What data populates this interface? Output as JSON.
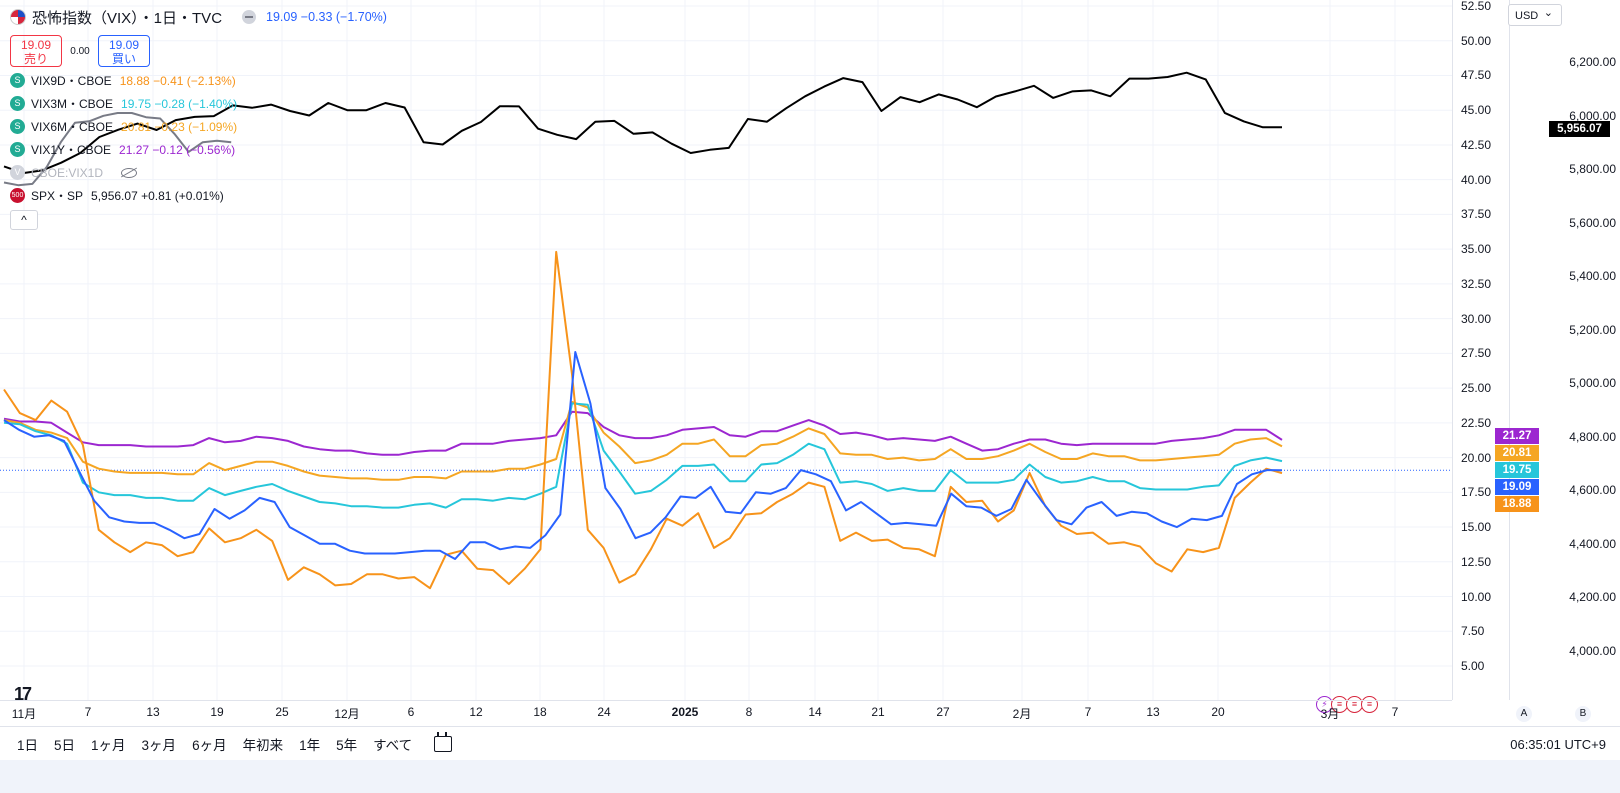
{
  "header": {
    "title": "恐怖指数（VIX）・1日・TVC",
    "price_info": "19.09 −0.33 (−1.70%)",
    "sell_price": "19.09",
    "sell_label": "売り",
    "spread": "0.00",
    "buy_price": "19.09",
    "buy_label": "買い"
  },
  "series": [
    {
      "name": "VIX9D・CBOE",
      "values": "18.88 −0.41 (−2.13%)",
      "color": "#f7931a",
      "icon": "S"
    },
    {
      "name": "VIX3M・CBOE",
      "values": "19.75 −0.28 (−1.40%)",
      "color": "#26c6da",
      "icon": "S"
    },
    {
      "name": "VIX6M・CBOE",
      "values": "20.81 −0.23 (−1.09%)",
      "color": "#f5a623",
      "icon": "S"
    },
    {
      "name": "VIX1Y・CBOE",
      "values": "21.27 −0.12 (−0.56%)",
      "color": "#9c27d0",
      "icon": "S"
    },
    {
      "name": "CBOE:VIX1D",
      "values": "",
      "color": "#b2b5be",
      "icon": "V"
    },
    {
      "name": "SPX・SP",
      "values": "5,956.07 +0.81 (+0.01%)",
      "color": "#131722",
      "icon": "500"
    }
  ],
  "axis": {
    "currency": "USD",
    "a_label": "A",
    "b_label": "B"
  },
  "badges": {
    "spx": "5,956.07",
    "vix1y": "21.27",
    "vix6m": "20.81",
    "vix3m": "19.75",
    "vix": "19.09",
    "vix9d": "18.88"
  },
  "ranges": [
    "1日",
    "5日",
    "1ヶ月",
    "3ヶ月",
    "6ヶ月",
    "年初来",
    "1年",
    "5年",
    "すべて"
  ],
  "clock": "06:35:01 UTC+9",
  "colors": {
    "vix": "#2962ff",
    "vix9d": "#f7931a",
    "vix3m": "#26c6da",
    "vix6m": "#f5a623",
    "vix1y": "#9c27d0",
    "spx": "#000000",
    "vix1d": "#787b86"
  },
  "chart_data": {
    "type": "line",
    "x_labels": [
      "11月",
      "7",
      "13",
      "19",
      "25",
      "12月",
      "6",
      "12",
      "18",
      "24",
      "2025",
      "8",
      "14",
      "21",
      "27",
      "2月",
      "7",
      "13",
      "20",
      "3月",
      "7"
    ],
    "y_left_ticks": [
      "52.50",
      "50.00",
      "47.50",
      "45.00",
      "42.50",
      "40.00",
      "37.50",
      "35.00",
      "32.50",
      "30.00",
      "27.50",
      "25.00",
      "22.50",
      "20.00",
      "17.50",
      "15.00",
      "12.50",
      "10.00",
      "7.50",
      "5.00"
    ],
    "y_right_ticks": [
      "6,200.00",
      "6,000.00",
      "5,800.00",
      "5,600.00",
      "5,400.00",
      "5,200.00",
      "5,000.00",
      "4,800.00",
      "4,600.00",
      "4,400.00",
      "4,200.00",
      "4,000.00"
    ],
    "ylim_left": [
      3.5,
      52.5
    ],
    "ylim_right": [
      3950,
      6230
    ],
    "series": [
      {
        "name": "VIX",
        "axis": "left",
        "values": [
          22.7,
          22.0,
          21.5,
          21.6,
          21.2,
          19.0,
          16.9,
          15.7,
          15.4,
          15.3,
          15.3,
          14.8,
          14.2,
          14.5,
          16.3,
          15.6,
          16.2,
          17.1,
          16.8,
          15.0,
          14.4,
          13.8,
          13.8,
          13.3,
          13.1,
          13.1,
          13.1,
          13.2,
          13.3,
          13.3,
          12.7,
          13.9,
          13.9,
          13.4,
          13.6,
          13.5,
          14.4,
          15.9,
          27.6,
          23.9,
          17.8,
          16.3,
          14.2,
          14.6,
          15.7,
          17.2,
          17.1,
          17.9,
          16.1,
          16.0,
          17.5,
          17.4,
          17.8,
          19.1,
          18.8,
          18.3,
          16.2,
          16.8,
          16.0,
          15.2,
          15.3,
          15.2,
          15.1,
          17.4,
          16.5,
          16.4,
          15.8,
          16.3,
          18.4,
          16.9,
          15.5,
          15.2,
          16.4,
          16.8,
          15.8,
          16.1,
          16.0,
          15.4,
          15.0,
          15.6,
          15.5,
          15.8,
          18.1,
          18.8,
          19.1,
          19.09
        ]
      },
      {
        "name": "VIX9D",
        "axis": "left",
        "values": [
          24.9,
          23.2,
          22.7,
          24.1,
          23.3,
          20.9,
          14.8,
          13.9,
          13.2,
          13.9,
          13.7,
          12.9,
          13.2,
          14.9,
          13.9,
          14.2,
          14.8,
          14.0,
          11.2,
          12.1,
          11.6,
          10.8,
          10.9,
          11.6,
          11.6,
          11.3,
          11.4,
          10.6,
          13.0,
          13.3,
          12.0,
          11.9,
          10.9,
          12.0,
          13.4,
          34.8,
          26.0,
          14.8,
          13.5,
          11.0,
          11.6,
          13.4,
          15.6,
          15.1,
          16.0,
          13.5,
          14.2,
          15.9,
          16.0,
          16.8,
          17.4,
          18.2,
          17.9,
          14.0,
          14.6,
          14.0,
          14.1,
          13.5,
          13.4,
          12.9,
          17.9,
          16.8,
          16.9,
          15.4,
          16.2,
          18.9,
          16.5,
          15.1,
          14.5,
          14.6,
          13.8,
          13.9,
          13.6,
          12.4,
          11.8,
          13.4,
          13.2,
          13.5,
          17.1,
          18.2,
          19.2,
          18.88
        ]
      },
      {
        "name": "VIX3M",
        "axis": "left",
        "values": [
          22.5,
          22.4,
          21.9,
          21.6,
          21.0,
          18.2,
          17.5,
          17.3,
          17.3,
          17.1,
          17.1,
          16.9,
          16.9,
          17.8,
          17.3,
          17.6,
          17.9,
          18.1,
          17.6,
          17.2,
          16.8,
          16.7,
          16.5,
          16.5,
          16.4,
          16.4,
          16.6,
          16.7,
          16.4,
          17.0,
          17.0,
          16.9,
          17.1,
          17.0,
          17.4,
          17.9,
          23.9,
          23.8,
          20.5,
          19.0,
          17.4,
          17.6,
          18.4,
          19.4,
          19.4,
          19.5,
          18.3,
          18.3,
          19.5,
          19.6,
          20.2,
          21.0,
          20.6,
          18.2,
          18.3,
          18.1,
          17.6,
          17.8,
          17.6,
          17.6,
          19.1,
          18.2,
          18.2,
          18.2,
          18.4,
          19.5,
          18.6,
          18.2,
          18.3,
          18.6,
          18.3,
          18.3,
          17.8,
          17.7,
          17.7,
          17.7,
          17.9,
          18.0,
          19.4,
          19.8,
          20.0,
          19.75
        ]
      },
      {
        "name": "VIX6M",
        "axis": "left",
        "values": [
          22.7,
          22.5,
          22.0,
          21.8,
          21.4,
          19.7,
          19.2,
          19.0,
          18.9,
          18.9,
          18.9,
          18.8,
          18.8,
          19.6,
          19.1,
          19.4,
          19.7,
          19.7,
          19.4,
          19.0,
          18.7,
          18.6,
          18.5,
          18.5,
          18.4,
          18.4,
          18.6,
          18.6,
          18.5,
          19.0,
          19.0,
          19.0,
          19.2,
          19.2,
          19.5,
          19.9,
          24.0,
          23.6,
          21.8,
          20.8,
          19.6,
          19.8,
          20.2,
          21.0,
          21.0,
          21.3,
          20.1,
          20.1,
          20.9,
          21.0,
          21.5,
          22.1,
          21.7,
          20.3,
          20.2,
          20.2,
          19.9,
          20.0,
          19.8,
          19.9,
          20.6,
          19.9,
          19.9,
          20.1,
          20.5,
          21.0,
          20.4,
          19.9,
          19.9,
          20.3,
          20.1,
          20.1,
          19.8,
          19.8,
          19.9,
          20.0,
          20.1,
          20.2,
          21.0,
          21.3,
          21.4,
          20.81
        ]
      },
      {
        "name": "VIX1Y",
        "axis": "left",
        "values": [
          22.8,
          22.6,
          22.6,
          22.5,
          21.8,
          21.1,
          20.9,
          20.9,
          20.9,
          20.8,
          20.8,
          20.8,
          20.9,
          21.4,
          21.1,
          21.2,
          21.5,
          21.4,
          21.2,
          20.8,
          20.6,
          20.5,
          20.5,
          20.3,
          20.2,
          20.2,
          20.4,
          20.5,
          20.5,
          21.0,
          21.0,
          21.0,
          21.2,
          21.3,
          21.4,
          21.6,
          23.3,
          23.2,
          22.2,
          21.6,
          21.4,
          21.4,
          21.6,
          22.0,
          22.1,
          22.2,
          21.6,
          21.5,
          21.9,
          21.9,
          22.3,
          22.7,
          22.3,
          21.7,
          21.8,
          21.6,
          21.3,
          21.4,
          21.3,
          21.2,
          21.5,
          21.0,
          20.5,
          20.6,
          21.0,
          21.3,
          21.3,
          21.0,
          20.9,
          21.0,
          21.0,
          21.0,
          21.0,
          21.0,
          21.2,
          21.3,
          21.4,
          21.6,
          22.0,
          22.0,
          22.0,
          21.27
        ]
      },
      {
        "name": "VIX1D",
        "axis": "left",
        "values": [
          39.8,
          39.6,
          39.7,
          40.9,
          42.7,
          44.1,
          44.2,
          44.6,
          44.8,
          44.8,
          44.5,
          44.4,
          43.3,
          42.0,
          42.7,
          42.8,
          42.7
        ]
      },
      {
        "name": "SPX",
        "axis": "right",
        "values": [
          5810,
          5785,
          5795,
          5824,
          5860,
          5920,
          5947,
          5970,
          5946,
          5983,
          5995,
          5998,
          6038,
          6029,
          6041,
          6017,
          6000,
          6047,
          6020,
          6020,
          6047,
          6030,
          5900,
          5892,
          5943,
          5976,
          6035,
          6034,
          5951,
          5928,
          5912,
          5977,
          5980,
          5932,
          5937,
          5895,
          5860,
          5872,
          5879,
          5987,
          5977,
          6027,
          6072,
          6108,
          6140,
          6125,
          6017,
          6069,
          6050,
          6079,
          6060,
          6031,
          6071,
          6090,
          6111,
          6066,
          6090,
          6094,
          6072,
          6138,
          6138,
          6144,
          6160,
          6135,
          6010,
          5978,
          5956,
          5956.07
        ]
      }
    ]
  }
}
